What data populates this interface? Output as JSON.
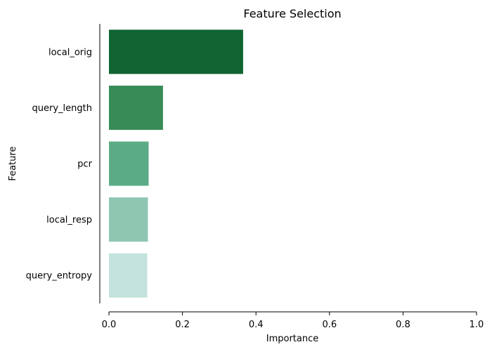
{
  "chart_data": {
    "type": "bar",
    "orientation": "horizontal",
    "title": "Feature Selection",
    "xlabel": "Importance",
    "ylabel": "Feature",
    "categories": [
      "local_orig",
      "query_length",
      "pcr",
      "local_resp",
      "query_entropy"
    ],
    "values": [
      0.365,
      0.147,
      0.108,
      0.106,
      0.104
    ],
    "colors": [
      "#116432",
      "#388b57",
      "#5bac86",
      "#8fc6b2",
      "#c3e3dc"
    ],
    "xlim": [
      0.0,
      1.0
    ],
    "xticks": [
      0.0,
      0.2,
      0.4,
      0.6,
      0.8,
      1.0
    ],
    "xtick_labels": [
      "0.0",
      "0.2",
      "0.4",
      "0.6",
      "0.8",
      "1.0"
    ],
    "grid": false,
    "legend": "none"
  }
}
